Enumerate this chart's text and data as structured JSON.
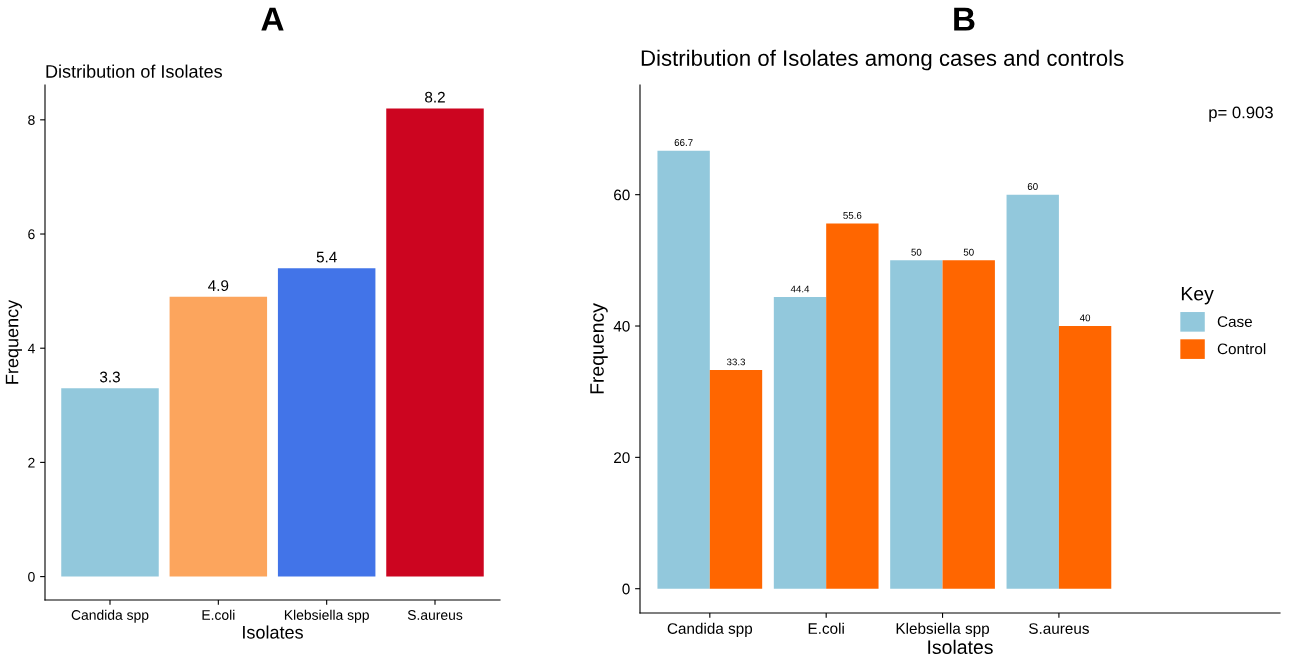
{
  "chart_data": [
    {
      "type": "bar",
      "title": "A",
      "subtitle": "Distribution of Isolates",
      "xlabel": "Isolates",
      "ylabel": "Frequency",
      "categories": [
        "Candida spp",
        "E.coli",
        "Klebsiella spp",
        "S.aureus"
      ],
      "values": [
        3.3,
        4.9,
        5.4,
        8.2
      ],
      "colors": [
        "#92c8dc",
        "#fca55d",
        "#4274e8",
        "#cc0520"
      ],
      "ylim": [
        -0.41,
        8.61
      ],
      "yticks": [
        0,
        2,
        4,
        6,
        8
      ],
      "grid": false,
      "legend": false,
      "data_labels": true
    },
    {
      "type": "bar",
      "title": "B",
      "subtitle": "Distribution of Isolates among cases and controls",
      "xlabel": "Isolates",
      "ylabel": "Frequency",
      "categories": [
        "Candida spp",
        "E.coli",
        "Klebsiella spp",
        "S.aureus"
      ],
      "series": [
        {
          "name": "Case",
          "color": "#92c8dc",
          "values": [
            66.7,
            44.4,
            50,
            60
          ]
        },
        {
          "name": "Control",
          "color": "#ff6600",
          "values": [
            33.3,
            55.6,
            50,
            40
          ]
        }
      ],
      "ylim": [
        -3.7,
        76.7
      ],
      "yticks": [
        0,
        20,
        40,
        60
      ],
      "grid": false,
      "legend": "right",
      "legend_title": "Key",
      "data_labels": true,
      "annotations": [
        "p= 0.903"
      ]
    }
  ]
}
